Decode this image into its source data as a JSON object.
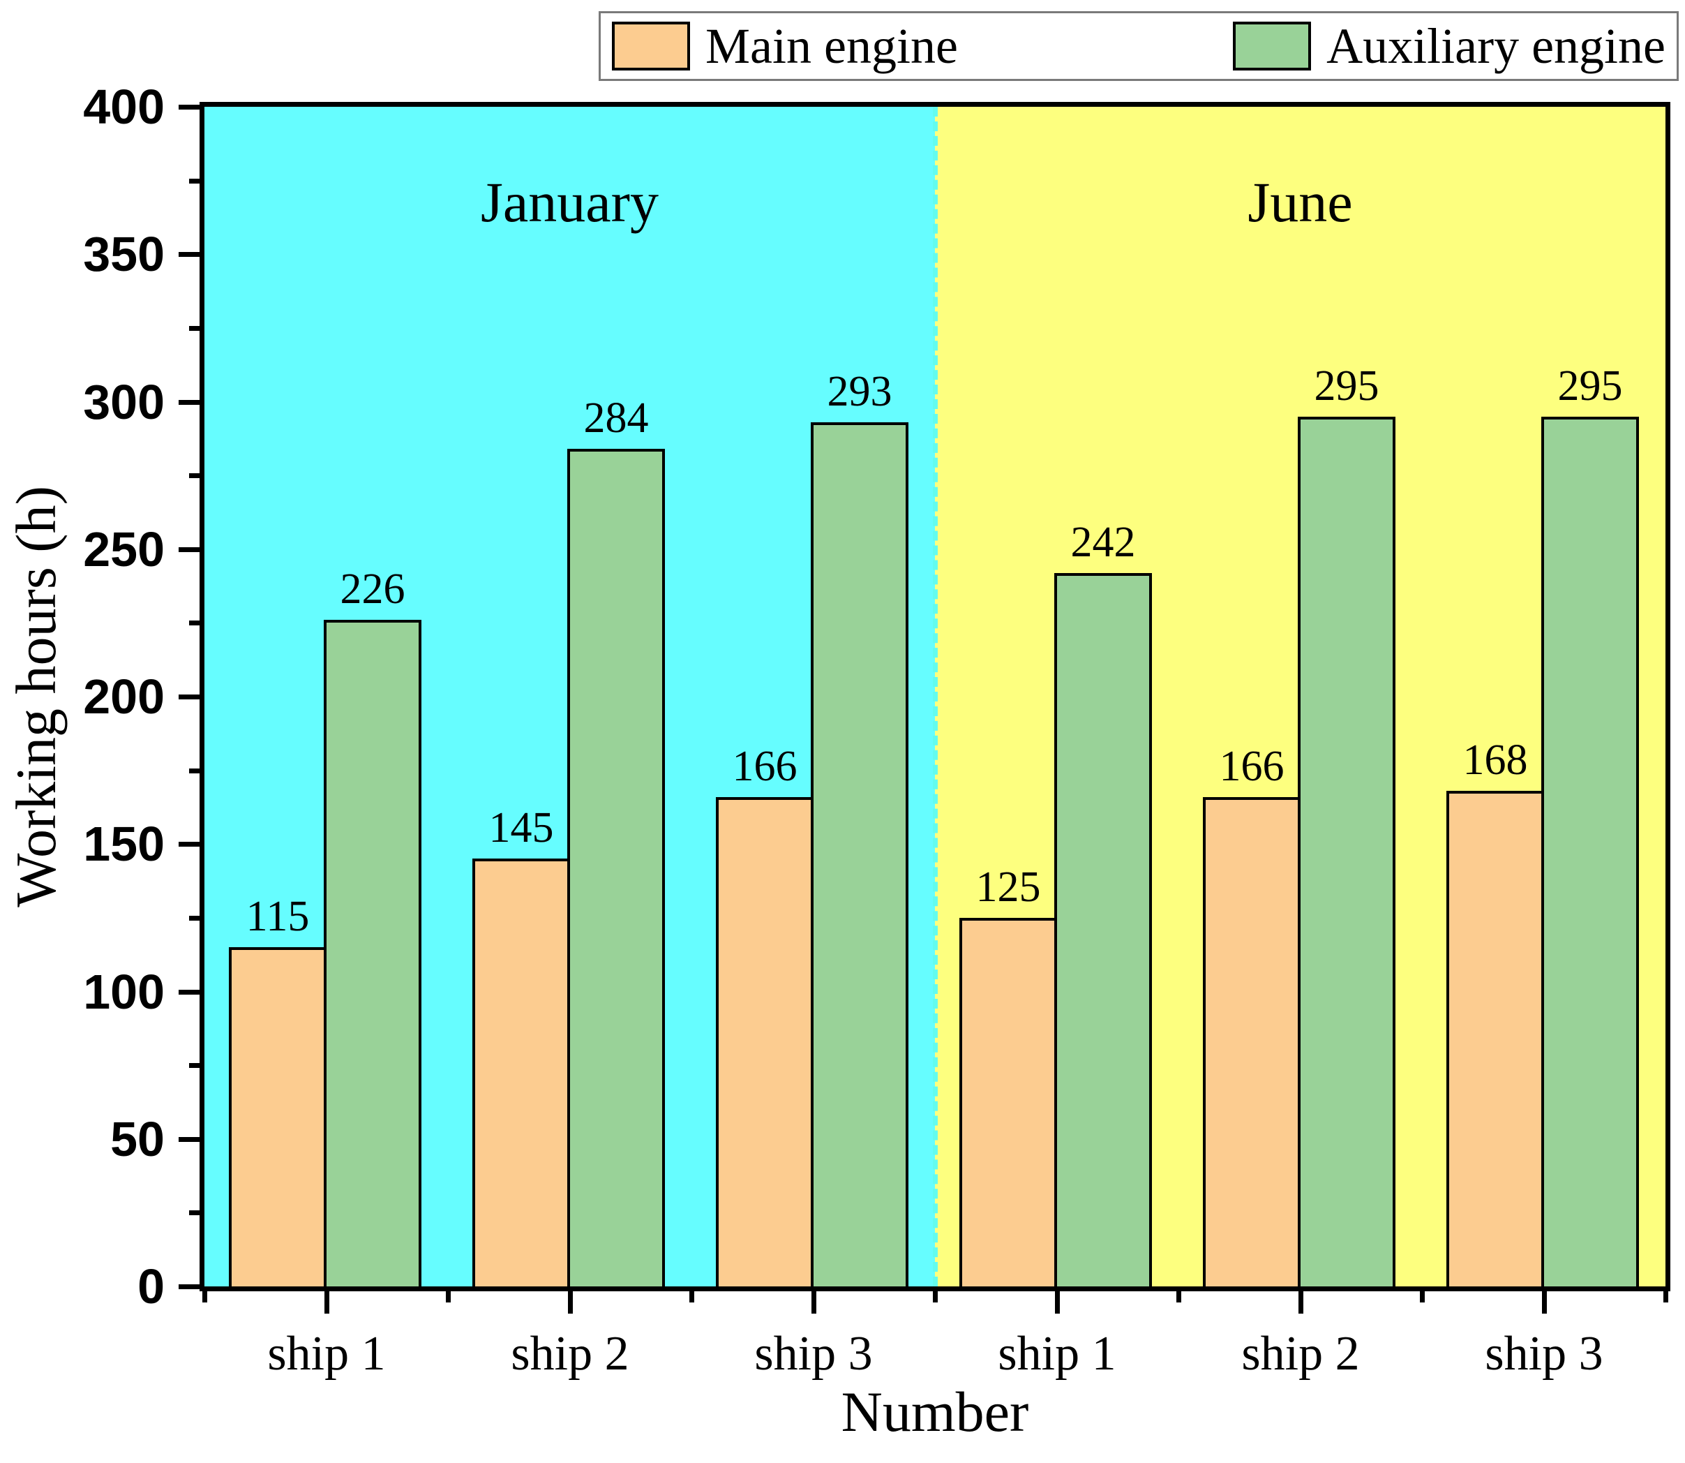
{
  "chart_data": {
    "type": "bar",
    "title": "",
    "xlabel": "Number",
    "ylabel": "Working hours (h)",
    "ylim": [
      0,
      400
    ],
    "y_major_step": 50,
    "y_minor_step": 25,
    "y_tick_labels": [
      "0",
      "50",
      "100",
      "150",
      "200",
      "250",
      "300",
      "350",
      "400"
    ],
    "categories": [
      "ship 1",
      "ship 2",
      "ship 3",
      "ship 1",
      "ship 2",
      "ship 3"
    ],
    "regions": [
      {
        "label": "January",
        "color": "#66fdff",
        "groups": [
          0,
          1,
          2
        ]
      },
      {
        "label": "June",
        "color": "#fdff7f",
        "groups": [
          3,
          4,
          5
        ]
      }
    ],
    "divider_color": "#63fbee",
    "series": [
      {
        "name": "Main engine",
        "color": "#fccc90",
        "values": [
          115,
          145,
          166,
          125,
          166,
          168
        ]
      },
      {
        "name": "Auxiliary engine",
        "color": "#99d298",
        "values": [
          226,
          284,
          293,
          242,
          295,
          295
        ]
      }
    ],
    "bar_value_labels": {
      "january": {
        "ship1": [
          115,
          226
        ],
        "ship2": [
          145,
          284
        ],
        "ship3": [
          166,
          293
        ]
      },
      "june": {
        "ship1": [
          125,
          242
        ],
        "ship2": [
          166,
          295
        ],
        "ship3": [
          168,
          295
        ]
      }
    },
    "legend_position": "top",
    "grid": false
  },
  "layout_colors": {
    "axis": "#000000",
    "legend_border": "#7a7a7a",
    "plot_background_left": "#66fdff",
    "plot_background_right": "#fdff7f"
  }
}
